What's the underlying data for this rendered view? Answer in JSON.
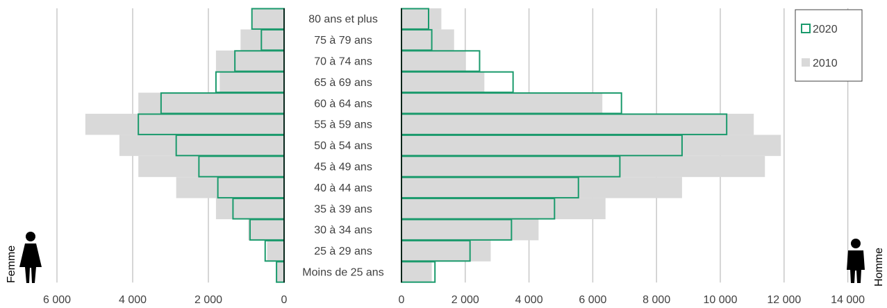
{
  "chart_data": {
    "type": "bar",
    "orientation": "horizontal",
    "layout": "population-pyramid",
    "categories": [
      "80 ans et plus",
      "75 à 79 ans",
      "70 à 74 ans",
      "65 à 69 ans",
      "60 à 64 ans",
      "55 à 59 ans",
      "50 à 54 ans",
      "45 à 49 ans",
      "40 à 44 ans",
      "35 à 39 ans",
      "30 à 34 ans",
      "25 à 29 ans",
      "Moins de 25 ans"
    ],
    "left_panel": {
      "label": "Femme",
      "xlim": [
        0,
        6000
      ],
      "ticks": [
        0,
        2000,
        4000,
        6000
      ],
      "tick_labels": [
        "0",
        "2 000",
        "4 000",
        "6 000"
      ],
      "series": [
        {
          "name": "2010",
          "values": [
            850,
            1150,
            1800,
            1700,
            3850,
            5250,
            4350,
            3850,
            2850,
            1800,
            950,
            450,
            200
          ]
        },
        {
          "name": "2020",
          "values": [
            850,
            600,
            1300,
            1800,
            3250,
            3850,
            2850,
            2250,
            1750,
            1350,
            900,
            500,
            200
          ]
        }
      ]
    },
    "right_panel": {
      "label": "Homme",
      "xlim": [
        0,
        14000
      ],
      "ticks": [
        0,
        2000,
        4000,
        6000,
        8000,
        10000,
        12000,
        14000
      ],
      "tick_labels": [
        "0",
        "2 000",
        "4 000",
        "6 000",
        "8 000",
        "10 000",
        "12 000",
        "14 000"
      ],
      "series": [
        {
          "name": "2010",
          "values": [
            1250,
            1650,
            2000,
            2600,
            6300,
            11050,
            11900,
            11400,
            8800,
            6400,
            4300,
            2800,
            950
          ]
        },
        {
          "name": "2020",
          "values": [
            850,
            950,
            2450,
            3500,
            6900,
            10200,
            8800,
            6850,
            5550,
            4800,
            3450,
            2150,
            1050
          ]
        }
      ]
    },
    "legend": {
      "position": "top-right",
      "items": [
        {
          "name": "2020",
          "style": "outline"
        },
        {
          "name": "2010",
          "style": "filled"
        }
      ]
    },
    "grid": true,
    "colors": {
      "2010": "#d9d9d9",
      "2020": "#1a9a6c",
      "grid": "#c8c8c8",
      "axis": "#000000",
      "text": "#404040"
    }
  }
}
